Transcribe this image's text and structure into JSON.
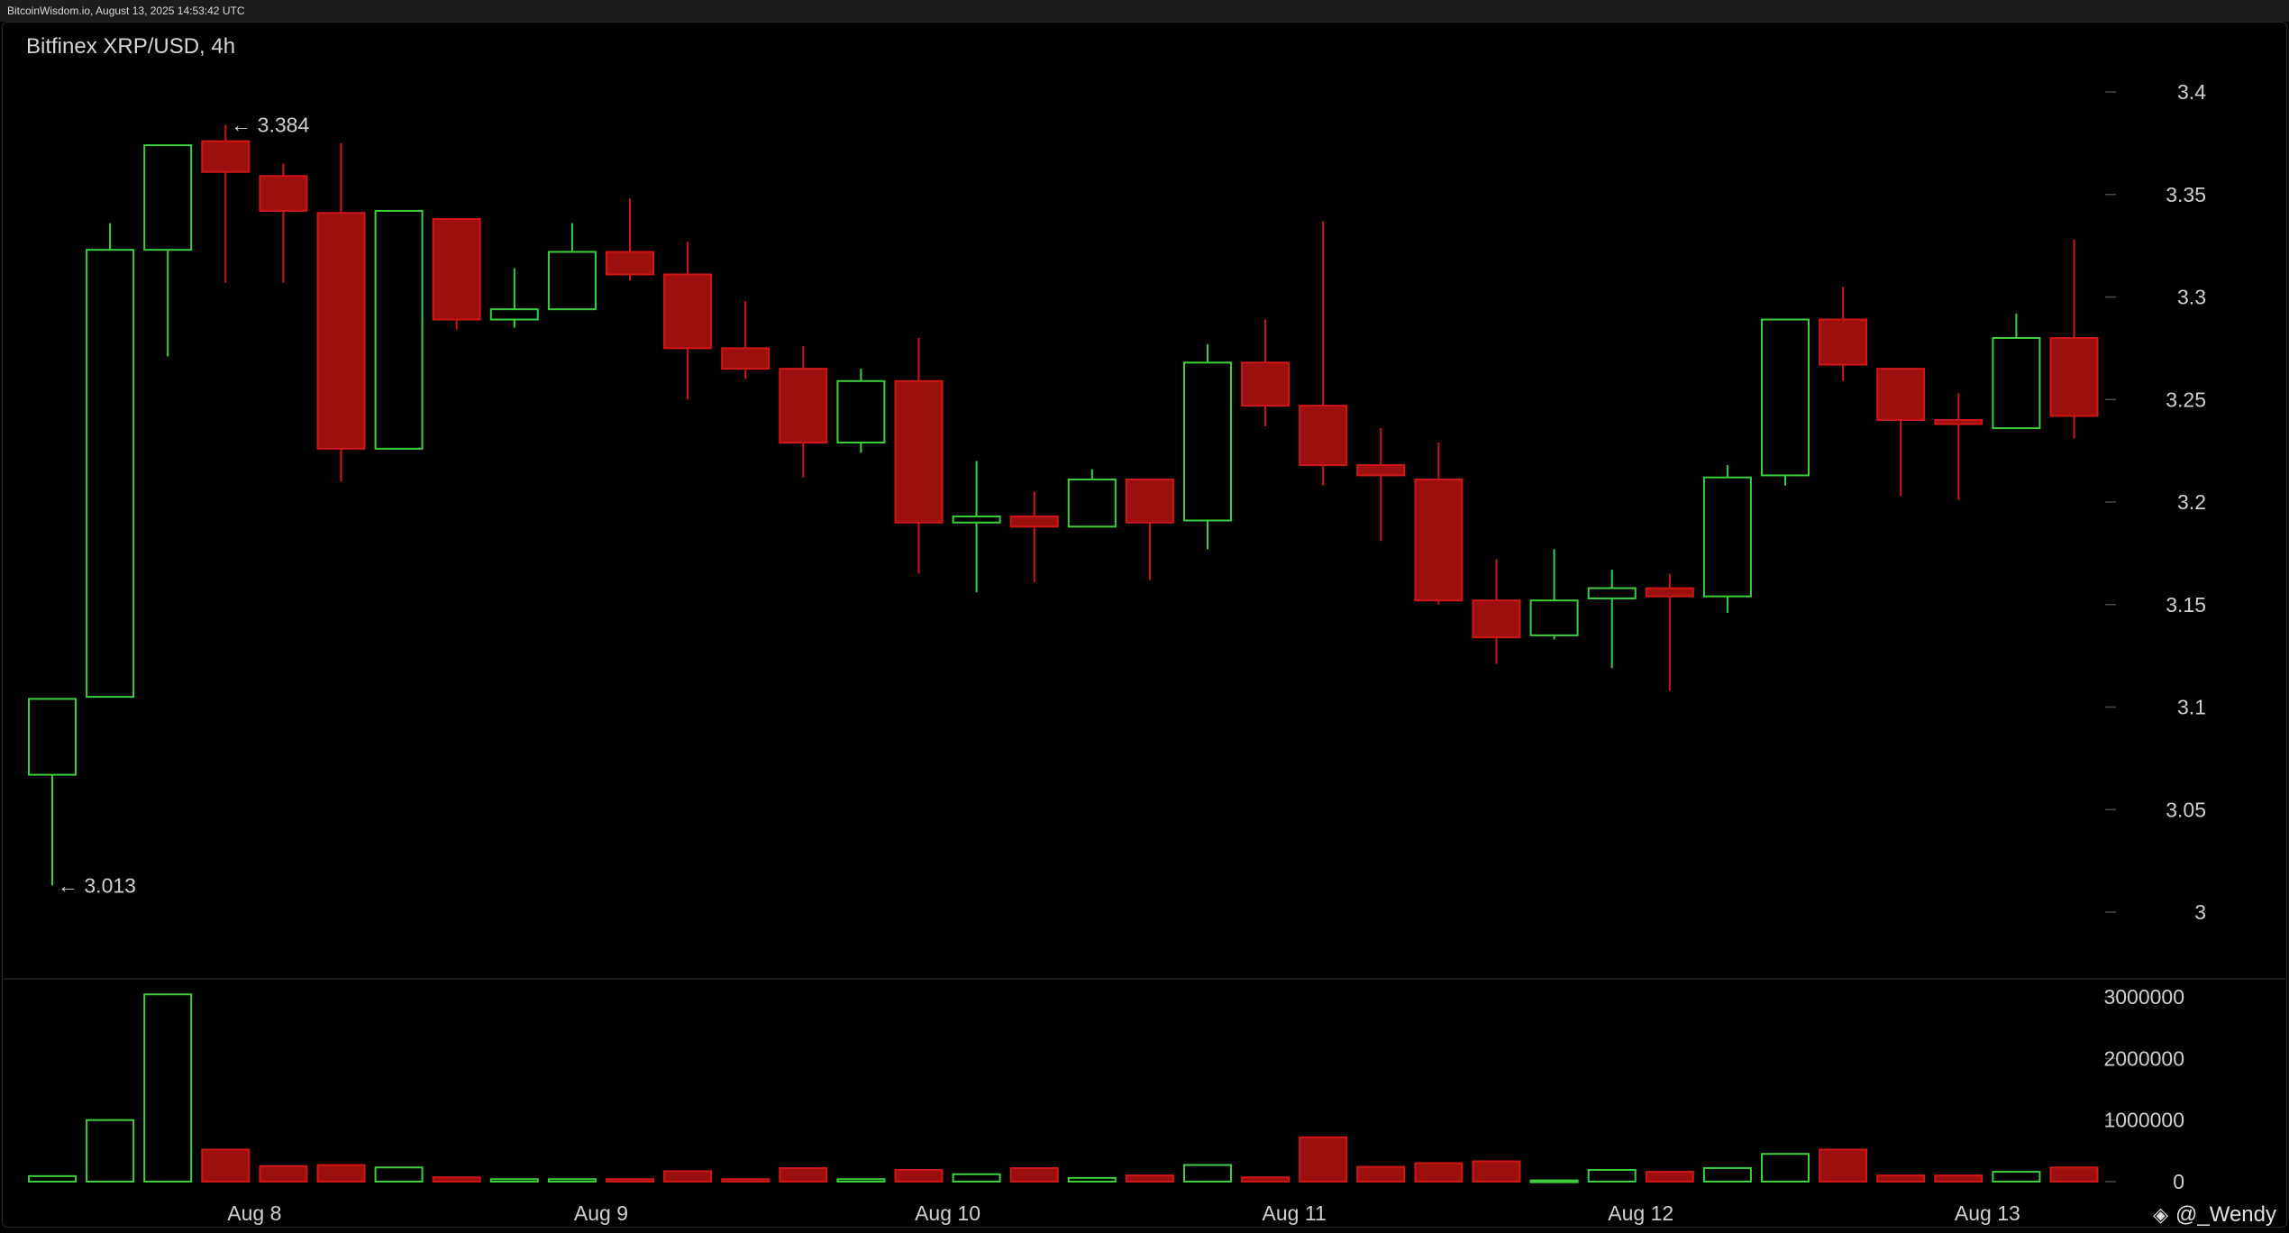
{
  "header": {
    "source_timestamp": "BitcoinWisdom.io, August 13, 2025 14:53:42 UTC"
  },
  "watermark": {
    "text": "@_Wendy",
    "icon": "diamond-logo-icon"
  },
  "colors": {
    "up": "#3ccf3c",
    "down": "#d01717",
    "down_fill": "#9c0f0f",
    "text": "#d0d0d0",
    "tick": "#4a4a4a",
    "separator": "#333333"
  },
  "chart_data": [
    {
      "type": "candlestick",
      "title": "Bitfinex XRP/USD, 4h",
      "ylim": [
        2.97,
        3.43
      ],
      "y_ticks": [
        3.4,
        3.35,
        3.3,
        3.25,
        3.2,
        3.15,
        3.1,
        3.05,
        3
      ],
      "y_tick_labels": [
        "3.4",
        "3.35",
        "3.3",
        "3.25",
        "3.2",
        "3.15",
        "3.1",
        "3.05",
        "3"
      ],
      "x_labels": [
        {
          "label": "Aug 8",
          "index": 3.5
        },
        {
          "label": "Aug 9",
          "index": 9.5
        },
        {
          "label": "Aug 10",
          "index": 15.5
        },
        {
          "label": "Aug 11",
          "index": 21.5
        },
        {
          "label": "Aug 12",
          "index": 27.5
        },
        {
          "label": "Aug 13",
          "index": 33.5
        }
      ],
      "annotations": [
        {
          "text": "← 3.384",
          "candle_index": 3,
          "price": 3.384
        },
        {
          "text": "← 3.013",
          "candle_index": 0,
          "price": 3.013
        }
      ],
      "candles": [
        {
          "open": 3.067,
          "high": 3.104,
          "low": 3.013,
          "close": 3.104
        },
        {
          "open": 3.105,
          "high": 3.336,
          "low": 3.105,
          "close": 3.323
        },
        {
          "open": 3.323,
          "high": 3.374,
          "low": 3.271,
          "close": 3.374
        },
        {
          "open": 3.376,
          "high": 3.384,
          "low": 3.307,
          "close": 3.361
        },
        {
          "open": 3.359,
          "high": 3.365,
          "low": 3.307,
          "close": 3.342
        },
        {
          "open": 3.341,
          "high": 3.375,
          "low": 3.21,
          "close": 3.226
        },
        {
          "open": 3.226,
          "high": 3.342,
          "low": 3.226,
          "close": 3.342
        },
        {
          "open": 3.338,
          "high": 3.338,
          "low": 3.284,
          "close": 3.289
        },
        {
          "open": 3.289,
          "high": 3.314,
          "low": 3.285,
          "close": 3.294
        },
        {
          "open": 3.294,
          "high": 3.336,
          "low": 3.294,
          "close": 3.322
        },
        {
          "open": 3.322,
          "high": 3.348,
          "low": 3.308,
          "close": 3.311
        },
        {
          "open": 3.311,
          "high": 3.327,
          "low": 3.25,
          "close": 3.275
        },
        {
          "open": 3.275,
          "high": 3.298,
          "low": 3.26,
          "close": 3.265
        },
        {
          "open": 3.265,
          "high": 3.276,
          "low": 3.212,
          "close": 3.229
        },
        {
          "open": 3.229,
          "high": 3.265,
          "low": 3.224,
          "close": 3.259
        },
        {
          "open": 3.259,
          "high": 3.28,
          "low": 3.165,
          "close": 3.19
        },
        {
          "open": 3.19,
          "high": 3.22,
          "low": 3.156,
          "close": 3.193
        },
        {
          "open": 3.193,
          "high": 3.205,
          "low": 3.161,
          "close": 3.188
        },
        {
          "open": 3.188,
          "high": 3.216,
          "low": 3.188,
          "close": 3.211
        },
        {
          "open": 3.211,
          "high": 3.211,
          "low": 3.162,
          "close": 3.19
        },
        {
          "open": 3.191,
          "high": 3.277,
          "low": 3.177,
          "close": 3.268
        },
        {
          "open": 3.268,
          "high": 3.289,
          "low": 3.237,
          "close": 3.247
        },
        {
          "open": 3.247,
          "high": 3.337,
          "low": 3.208,
          "close": 3.218
        },
        {
          "open": 3.218,
          "high": 3.236,
          "low": 3.181,
          "close": 3.213
        },
        {
          "open": 3.211,
          "high": 3.229,
          "low": 3.15,
          "close": 3.152
        },
        {
          "open": 3.152,
          "high": 3.172,
          "low": 3.121,
          "close": 3.134
        },
        {
          "open": 3.135,
          "high": 3.177,
          "low": 3.133,
          "close": 3.152
        },
        {
          "open": 3.153,
          "high": 3.167,
          "low": 3.119,
          "close": 3.158
        },
        {
          "open": 3.158,
          "high": 3.165,
          "low": 3.108,
          "close": 3.154
        },
        {
          "open": 3.154,
          "high": 3.218,
          "low": 3.146,
          "close": 3.212
        },
        {
          "open": 3.213,
          "high": 3.289,
          "low": 3.208,
          "close": 3.289
        },
        {
          "open": 3.289,
          "high": 3.305,
          "low": 3.259,
          "close": 3.267
        },
        {
          "open": 3.265,
          "high": 3.265,
          "low": 3.203,
          "close": 3.24
        },
        {
          "open": 3.24,
          "high": 3.253,
          "low": 3.201,
          "close": 3.238
        },
        {
          "open": 3.236,
          "high": 3.292,
          "low": 3.236,
          "close": 3.28
        },
        {
          "open": 3.28,
          "high": 3.328,
          "low": 3.231,
          "close": 3.242
        }
      ]
    },
    {
      "type": "bar",
      "title": "Volume",
      "ylim": [
        0,
        3050000
      ],
      "y_ticks": [
        3000000,
        2000000,
        1000000,
        0
      ],
      "y_tick_labels": [
        "3000000",
        "2000000",
        "1000000",
        "0"
      ],
      "values": [
        90000,
        1000000,
        3040000,
        520000,
        250000,
        270000,
        230000,
        70000,
        40000,
        40000,
        40000,
        170000,
        40000,
        220000,
        40000,
        190000,
        120000,
        220000,
        60000,
        100000,
        270000,
        70000,
        720000,
        240000,
        300000,
        330000,
        20000,
        190000,
        160000,
        220000,
        450000,
        520000,
        100000,
        100000,
        160000,
        230000
      ]
    }
  ]
}
